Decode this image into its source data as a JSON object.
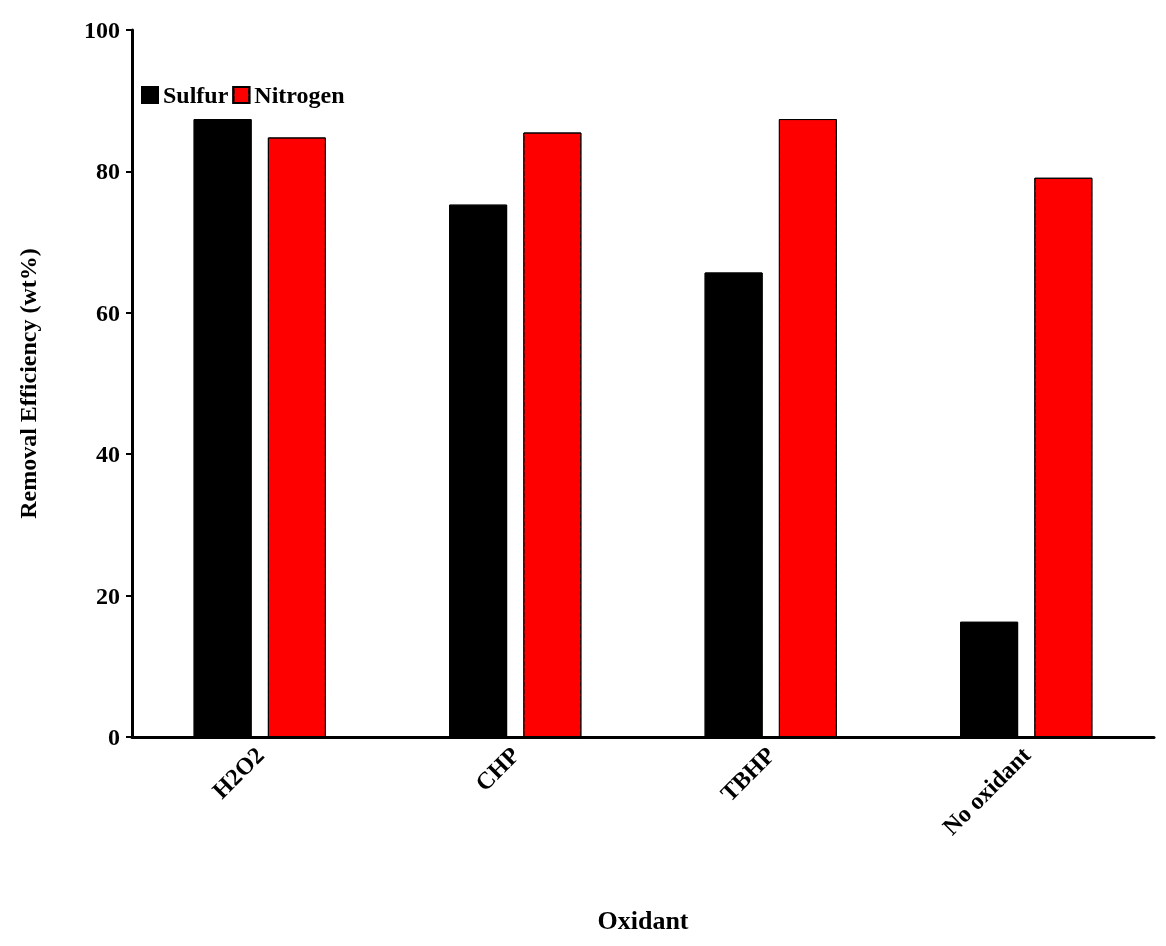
{
  "chart_data": {
    "type": "bar",
    "xlabel": "Oxidant",
    "ylabel": "Removal Efficiency (wt%)",
    "categories": [
      "H2O2",
      "CHP",
      "TBHP",
      "No oxidant"
    ],
    "series": [
      {
        "name": "Sulfur",
        "color": "#000000",
        "values": [
          87.4,
          75.3,
          65.7,
          16.3
        ]
      },
      {
        "name": "Nitrogen",
        "color": "#ff0000",
        "values": [
          84.8,
          85.5,
          87.4,
          79.1
        ]
      }
    ],
    "ylim": [
      0,
      100
    ],
    "yticks": [
      0,
      20,
      40,
      60,
      80,
      100
    ],
    "grid": false,
    "legend": "top left"
  }
}
